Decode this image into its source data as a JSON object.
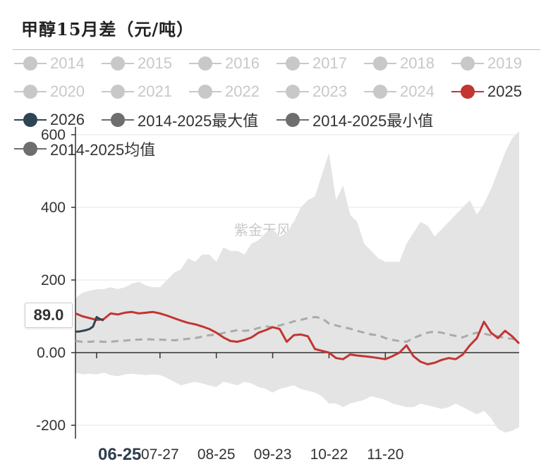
{
  "title": "甲醇15月差（元/吨）",
  "watermark": "紫金天风期货",
  "tooltip_value": "89.0",
  "highlight_x_label": "06-25",
  "legend": [
    {
      "label": "2014",
      "active": false,
      "color": "#c8c8c8"
    },
    {
      "label": "2015",
      "active": false,
      "color": "#c8c8c8"
    },
    {
      "label": "2016",
      "active": false,
      "color": "#c8c8c8"
    },
    {
      "label": "2017",
      "active": false,
      "color": "#c8c8c8"
    },
    {
      "label": "2018",
      "active": false,
      "color": "#c8c8c8"
    },
    {
      "label": "2019",
      "active": false,
      "color": "#c8c8c8"
    },
    {
      "label": "2020",
      "active": false,
      "color": "#c8c8c8"
    },
    {
      "label": "2021",
      "active": false,
      "color": "#c8c8c8"
    },
    {
      "label": "2022",
      "active": false,
      "color": "#c8c8c8"
    },
    {
      "label": "2023",
      "active": false,
      "color": "#c8c8c8"
    },
    {
      "label": "2024",
      "active": false,
      "color": "#c8c8c8"
    },
    {
      "label": "2025",
      "active": true,
      "color": "#c23531"
    },
    {
      "label": "2026",
      "active": true,
      "color": "#2f4554"
    },
    {
      "label": "2014-2025最大值",
      "active": true,
      "color": "#6e6e6e"
    },
    {
      "label": "2014-2025最小值",
      "active": true,
      "color": "#6e6e6e"
    },
    {
      "label": "2014-2025均值",
      "active": true,
      "color": "#6e6e6e"
    }
  ],
  "chart_data": {
    "type": "line",
    "title": "甲醇15月差（元/吨）",
    "xlabel": "",
    "ylabel": "",
    "ylim": [
      -230,
      620
    ],
    "y_ticks": [
      600,
      400,
      200,
      0,
      -200
    ],
    "y_tick_labels": [
      "600",
      "400",
      "200",
      "0.00",
      "-200"
    ],
    "x_tick_labels": [
      "06-25",
      "07-27",
      "08-25",
      "09-23",
      "10-22",
      "11-20"
    ],
    "x_tick_positions": [
      3,
      12,
      20,
      28,
      36,
      44
    ],
    "x_range": [
      0,
      63
    ],
    "grid": true,
    "legend_position": "top",
    "range_band": {
      "name_max": "2014-2025最大值",
      "name_min": "2014-2025最小值",
      "color": "#e4e4e4",
      "x": [
        0,
        1,
        2,
        3,
        4,
        5,
        6,
        7,
        8,
        9,
        10,
        11,
        12,
        13,
        14,
        15,
        16,
        17,
        18,
        19,
        20,
        21,
        22,
        23,
        24,
        25,
        26,
        27,
        28,
        29,
        30,
        31,
        32,
        33,
        34,
        35,
        36,
        37,
        38,
        39,
        40,
        41,
        42,
        43,
        44,
        45,
        46,
        47,
        48,
        49,
        50,
        51,
        52,
        53,
        54,
        55,
        56,
        57,
        58,
        59,
        60,
        61,
        62,
        63
      ],
      "max": [
        150,
        165,
        170,
        175,
        175,
        180,
        175,
        180,
        190,
        195,
        185,
        180,
        180,
        200,
        220,
        230,
        260,
        250,
        270,
        270,
        250,
        290,
        280,
        280,
        270,
        300,
        310,
        330,
        340,
        320,
        330,
        360,
        400,
        420,
        430,
        490,
        550,
        420,
        460,
        380,
        360,
        300,
        280,
        260,
        250,
        250,
        250,
        300,
        330,
        360,
        350,
        320,
        340,
        360,
        380,
        400,
        420,
        380,
        410,
        450,
        500,
        550,
        590,
        610
      ],
      "min": [
        -55,
        -60,
        -58,
        -60,
        -55,
        -62,
        -65,
        -60,
        -58,
        -60,
        -62,
        -60,
        -62,
        -70,
        -80,
        -90,
        -85,
        -80,
        -85,
        -90,
        -95,
        -80,
        -85,
        -90,
        -80,
        -85,
        -95,
        -100,
        -110,
        -100,
        -95,
        -90,
        -100,
        -105,
        -110,
        -120,
        -140,
        -140,
        -150,
        -140,
        -135,
        -130,
        -120,
        -125,
        -130,
        -140,
        -145,
        -150,
        -150,
        -140,
        -145,
        -150,
        -155,
        -150,
        -140,
        -150,
        -160,
        -170,
        -160,
        -180,
        -210,
        -220,
        -215,
        -205
      ]
    },
    "series": [
      {
        "name": "2014-2025均值",
        "color": "#aaaaaa",
        "dashed": true,
        "x": [
          0,
          1,
          2,
          3,
          4,
          5,
          6,
          7,
          8,
          9,
          10,
          11,
          12,
          13,
          14,
          15,
          16,
          17,
          18,
          19,
          20,
          21,
          22,
          23,
          24,
          25,
          26,
          27,
          28,
          29,
          30,
          31,
          32,
          33,
          34,
          35,
          36,
          37,
          38,
          39,
          40,
          41,
          42,
          43,
          44,
          45,
          46,
          47,
          48,
          49,
          50,
          51,
          52,
          53,
          54,
          55,
          56,
          57,
          58,
          59,
          60,
          61,
          62,
          63
        ],
        "y": [
          32,
          30,
          30,
          31,
          30,
          30,
          32,
          33,
          35,
          36,
          37,
          36,
          36,
          35,
          34,
          36,
          38,
          40,
          44,
          48,
          50,
          54,
          58,
          62,
          60,
          62,
          68,
          72,
          70,
          75,
          80,
          86,
          90,
          95,
          98,
          95,
          80,
          75,
          70,
          66,
          60,
          55,
          50,
          48,
          40,
          35,
          32,
          30,
          40,
          48,
          55,
          58,
          55,
          50,
          46,
          42,
          50,
          55,
          52,
          48,
          45,
          40,
          38,
          35
        ]
      },
      {
        "name": "2025",
        "color": "#c23531",
        "dashed": false,
        "x": [
          0,
          1,
          2,
          3,
          4,
          5,
          6,
          7,
          8,
          9,
          10,
          11,
          12,
          13,
          14,
          15,
          16,
          17,
          18,
          19,
          20,
          21,
          22,
          23,
          24,
          25,
          26,
          27,
          28,
          29,
          30,
          31,
          32,
          33,
          34,
          35,
          36,
          37,
          38,
          39,
          40,
          41,
          42,
          43,
          44,
          45,
          46,
          47,
          48,
          49,
          50,
          51,
          52,
          53,
          54,
          55,
          56,
          57,
          58,
          59,
          60,
          61,
          62,
          63
        ],
        "y": [
          108,
          100,
          95,
          90,
          92,
          108,
          105,
          110,
          112,
          108,
          110,
          112,
          108,
          102,
          95,
          88,
          82,
          78,
          72,
          65,
          55,
          42,
          32,
          30,
          35,
          42,
          55,
          62,
          70,
          65,
          30,
          48,
          50,
          45,
          10,
          5,
          0,
          -15,
          -18,
          -5,
          -8,
          -10,
          -12,
          -15,
          -18,
          -10,
          0,
          20,
          -10,
          -25,
          -32,
          -28,
          -20,
          -15,
          -18,
          -5,
          20,
          40,
          85,
          55,
          40,
          60,
          45,
          25
        ]
      },
      {
        "name": "2026",
        "color": "#2f4554",
        "dashed": false,
        "x": [
          0,
          0.5,
          1,
          1.5,
          2,
          2.5,
          3,
          3.5,
          4
        ],
        "y": [
          58,
          58,
          60,
          62,
          65,
          72,
          98,
          92,
          89
        ]
      }
    ]
  }
}
